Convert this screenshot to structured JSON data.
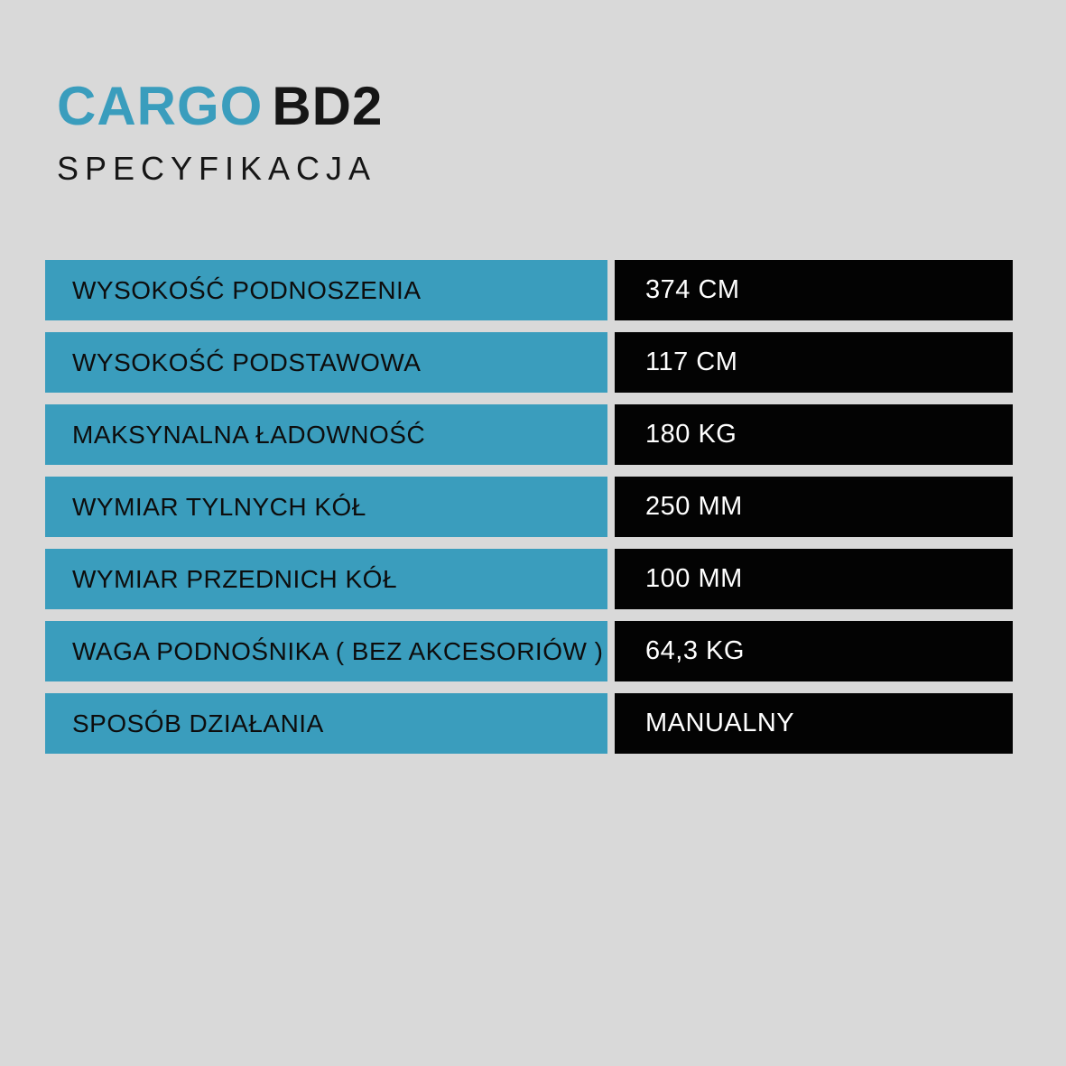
{
  "page": {
    "colors": {
      "background": "#d9d9d9",
      "accent_blue": "#3a9dbd",
      "value_box_black": "#030303",
      "label_text": "#0d0d0d",
      "value_text": "#ffffff",
      "title_dark": "#161616"
    }
  },
  "header": {
    "title_primary": "CARGO",
    "title_secondary": "BD2",
    "subtitle": "SPECYFIKACJA"
  },
  "spec_table": {
    "rows": [
      {
        "label": "WYSOKOŚĆ PODNOSZENIA",
        "value": "374 CM"
      },
      {
        "label": "WYSOKOŚĆ PODSTAWOWA",
        "value": "117 CM"
      },
      {
        "label": "MAKSYNALNA ŁADOWNOŚĆ",
        "value": "180 KG"
      },
      {
        "label": "WYMIAR TYLNYCH KÓŁ",
        "value": "250 MM"
      },
      {
        "label": "WYMIAR PRZEDNICH KÓŁ",
        "value": "100 MM"
      },
      {
        "label": "WAGA PODNOŚNIKA ( BEZ AKCESORIÓW )",
        "value": "64,3 KG"
      },
      {
        "label": "SPOSÓB DZIAŁANIA",
        "value": "MANUALNY"
      }
    ]
  }
}
